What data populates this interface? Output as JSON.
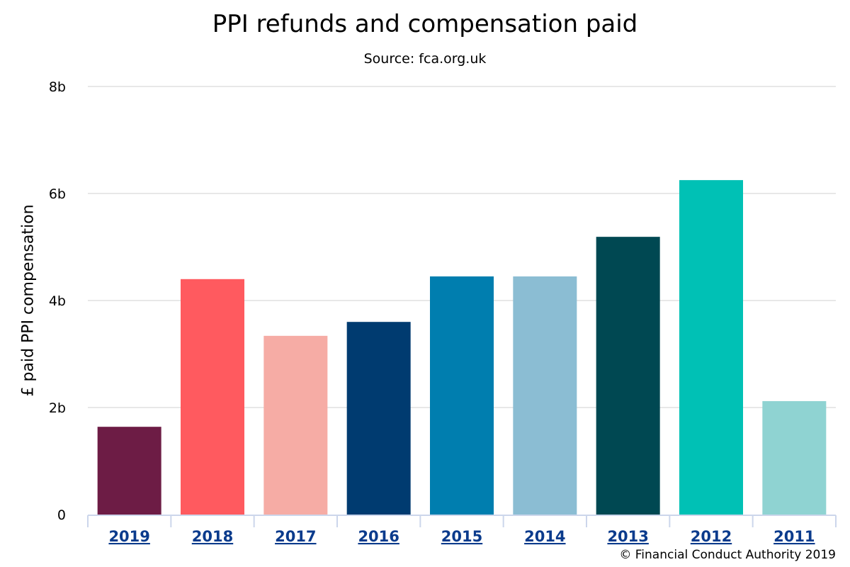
{
  "chart_data": {
    "type": "bar",
    "title": "PPI refunds and compensation paid",
    "subtitle": "Source: fca.org.uk",
    "xlabel": "",
    "ylabel": "£ paid PPI compensation",
    "ylim": [
      0,
      8
    ],
    "y_unit_suffix": "b",
    "y_ticks": [
      {
        "value": 0,
        "label": "0"
      },
      {
        "value": 2,
        "label": "2b"
      },
      {
        "value": 4,
        "label": "4b"
      },
      {
        "value": 6,
        "label": "6b"
      },
      {
        "value": 8,
        "label": "8b"
      }
    ],
    "categories": [
      "2019",
      "2018",
      "2017",
      "2016",
      "2015",
      "2014",
      "2013",
      "2012",
      "2011"
    ],
    "values": [
      1.64,
      4.4,
      3.34,
      3.6,
      4.45,
      4.45,
      5.19,
      6.25,
      2.12
    ],
    "bar_colors": [
      "#6d1c45",
      "#ff5a5f",
      "#f6aca5",
      "#003b70",
      "#007eaf",
      "#8bbdd3",
      "#004852",
      "#00c1b5",
      "#8fd3d2"
    ],
    "grid": true,
    "legend": "none",
    "credit": "© Financial Conduct Authority 2019"
  }
}
